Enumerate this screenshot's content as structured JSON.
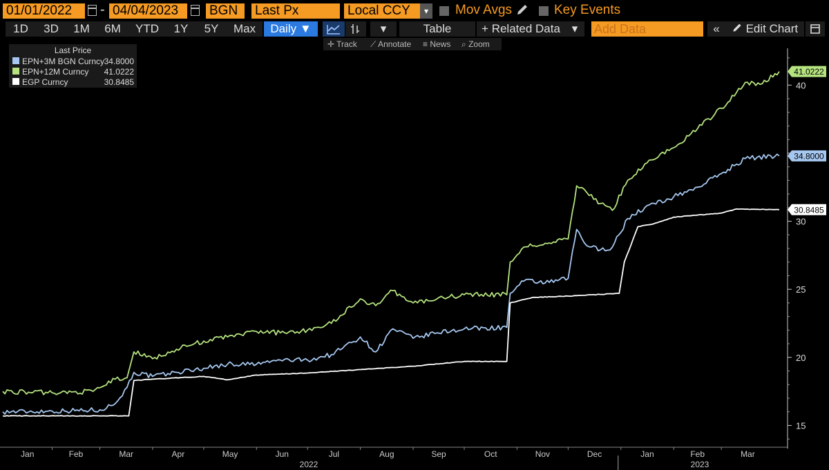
{
  "toolbar": {
    "start_date": "01/01/2022",
    "end_date": "04/04/2023",
    "date_separator": "-",
    "source": "BGN",
    "field": "Last Px",
    "currency": "Local CCY",
    "mov_avgs_label": "Mov Avgs",
    "key_events_label": "Key Events"
  },
  "periods": {
    "items": [
      "1D",
      "3D",
      "1M",
      "6M",
      "YTD",
      "1Y",
      "5Y",
      "Max"
    ],
    "frequency": "Daily ▼",
    "table_label": "Table",
    "related_data_label": "+ Related Data",
    "add_data_placeholder": "Add Data",
    "edit_chart_label": "Edit Chart"
  },
  "tools": {
    "track": "Track",
    "annotate": "Annotate",
    "news": "News",
    "zoom": "Zoom"
  },
  "legend": {
    "title": "Last Price",
    "entries": [
      {
        "name": "EPN+3M BGN Curncy",
        "value": "34.8000",
        "color": "#a6c8f0"
      },
      {
        "name": "EPN+12M Curncy",
        "value": "41.0222",
        "color": "#b5e37f"
      },
      {
        "name": "EGP Curncy",
        "value": "30.8485",
        "color": "#ffffff"
      }
    ]
  },
  "chart_data": {
    "type": "line",
    "x_start": "2022-01-03",
    "x_end": "2023-04-04",
    "ylim": [
      13.5,
      42.5
    ],
    "yticks": [
      15,
      20,
      25,
      30,
      35,
      40
    ],
    "month_labels": [
      "Jan",
      "Feb",
      "Mar",
      "Apr",
      "May",
      "Jun",
      "Jul",
      "Aug",
      "Sep",
      "Oct",
      "Nov",
      "Dec",
      "Jan",
      "Feb",
      "Mar"
    ],
    "year_labels": [
      "2022",
      "2023"
    ],
    "grid": false,
    "series": [
      {
        "name": "EPN+3M BGN Curncy",
        "color": "#a6c8f0",
        "last_label": "34.8000",
        "points": [
          [
            "2022-01-03",
            16.0
          ],
          [
            "2022-02-01",
            16.05
          ],
          [
            "2022-03-01",
            16.15
          ],
          [
            "2022-03-10",
            16.6
          ],
          [
            "2022-03-17",
            17.8
          ],
          [
            "2022-03-21",
            18.9
          ],
          [
            "2022-04-01",
            18.6
          ],
          [
            "2022-04-15",
            18.9
          ],
          [
            "2022-05-01",
            19.2
          ],
          [
            "2022-05-15",
            19.5
          ],
          [
            "2022-06-01",
            19.5
          ],
          [
            "2022-06-15",
            19.8
          ],
          [
            "2022-07-01",
            19.8
          ],
          [
            "2022-07-15",
            20.2
          ],
          [
            "2022-08-01",
            21.5
          ],
          [
            "2022-08-10",
            20.4
          ],
          [
            "2022-08-20",
            22.1
          ],
          [
            "2022-09-01",
            21.4
          ],
          [
            "2022-09-15",
            21.8
          ],
          [
            "2022-10-01",
            22.1
          ],
          [
            "2022-10-26",
            22.2
          ],
          [
            "2022-10-28",
            24.7
          ],
          [
            "2022-11-05",
            25.6
          ],
          [
            "2022-11-20",
            25.5
          ],
          [
            "2022-12-01",
            25.8
          ],
          [
            "2022-12-06",
            29.4
          ],
          [
            "2022-12-12",
            28.2
          ],
          [
            "2022-12-20",
            27.9
          ],
          [
            "2022-12-27",
            28.1
          ],
          [
            "2023-01-05",
            30.2
          ],
          [
            "2023-01-15",
            31.0
          ],
          [
            "2023-02-01",
            31.8
          ],
          [
            "2023-02-15",
            32.5
          ],
          [
            "2023-03-01",
            33.5
          ],
          [
            "2023-03-15",
            34.6
          ],
          [
            "2023-03-22",
            34.7
          ],
          [
            "2023-04-04",
            34.8
          ]
        ]
      },
      {
        "name": "EPN+12M Curncy",
        "color": "#b5e37f",
        "last_label": "41.0222",
        "points": [
          [
            "2022-01-03",
            17.5
          ],
          [
            "2022-02-01",
            17.4
          ],
          [
            "2022-02-25",
            17.5
          ],
          [
            "2022-03-10",
            18.4
          ],
          [
            "2022-03-17",
            18.5
          ],
          [
            "2022-03-21",
            20.4
          ],
          [
            "2022-04-01",
            19.9
          ],
          [
            "2022-04-15",
            20.6
          ],
          [
            "2022-05-01",
            21.2
          ],
          [
            "2022-05-15",
            21.5
          ],
          [
            "2022-06-01",
            21.9
          ],
          [
            "2022-06-15",
            21.8
          ],
          [
            "2022-07-01",
            22.0
          ],
          [
            "2022-07-15",
            22.5
          ],
          [
            "2022-08-01",
            24.3
          ],
          [
            "2022-08-10",
            23.8
          ],
          [
            "2022-08-20",
            24.9
          ],
          [
            "2022-09-01",
            24.0
          ],
          [
            "2022-09-15",
            24.3
          ],
          [
            "2022-10-01",
            24.6
          ],
          [
            "2022-10-26",
            24.6
          ],
          [
            "2022-10-28",
            27.0
          ],
          [
            "2022-11-05",
            28.1
          ],
          [
            "2022-11-20",
            28.4
          ],
          [
            "2022-12-01",
            28.7
          ],
          [
            "2022-12-06",
            32.6
          ],
          [
            "2022-12-12",
            32.1
          ],
          [
            "2022-12-20",
            31.3
          ],
          [
            "2022-12-27",
            30.8
          ],
          [
            "2023-01-05",
            33.0
          ],
          [
            "2023-01-15",
            34.2
          ],
          [
            "2023-02-01",
            35.4
          ],
          [
            "2023-02-15",
            36.8
          ],
          [
            "2023-03-01",
            38.3
          ],
          [
            "2023-03-15",
            40.2
          ],
          [
            "2023-03-25",
            40.1
          ],
          [
            "2023-04-04",
            41.0
          ]
        ]
      },
      {
        "name": "EGP Curncy",
        "color": "#ffffff",
        "last_label": "30.8485",
        "points": [
          [
            "2022-01-03",
            15.7
          ],
          [
            "2022-03-18",
            15.7
          ],
          [
            "2022-03-21",
            18.3
          ],
          [
            "2022-04-01",
            18.4
          ],
          [
            "2022-05-01",
            18.6
          ],
          [
            "2022-05-15",
            18.35
          ],
          [
            "2022-06-01",
            18.7
          ],
          [
            "2022-07-01",
            18.85
          ],
          [
            "2022-08-01",
            19.1
          ],
          [
            "2022-09-01",
            19.35
          ],
          [
            "2022-10-01",
            19.7
          ],
          [
            "2022-10-26",
            19.7
          ],
          [
            "2022-10-28",
            24.0
          ],
          [
            "2022-11-10",
            24.4
          ],
          [
            "2022-12-01",
            24.5
          ],
          [
            "2022-12-31",
            24.7
          ],
          [
            "2023-01-03",
            27.0
          ],
          [
            "2023-01-11",
            29.6
          ],
          [
            "2023-01-20",
            29.8
          ],
          [
            "2023-02-01",
            30.3
          ],
          [
            "2023-03-01",
            30.6
          ],
          [
            "2023-03-10",
            30.9
          ],
          [
            "2023-04-04",
            30.85
          ]
        ]
      }
    ]
  }
}
